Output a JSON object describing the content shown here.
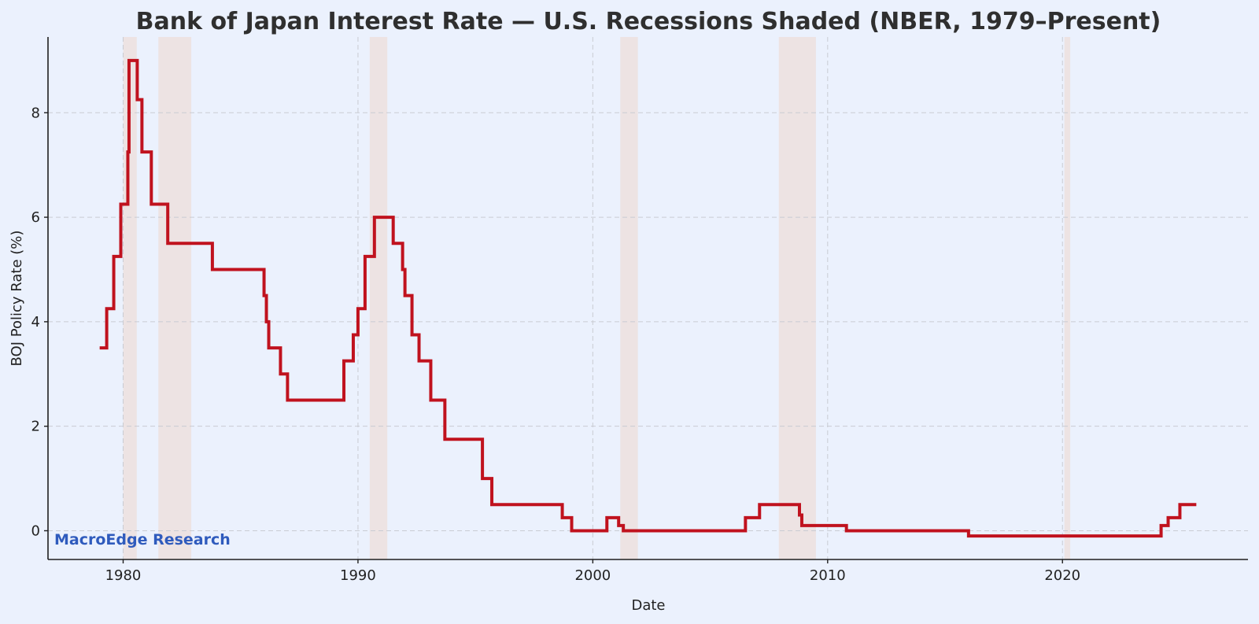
{
  "colors": {
    "background": "#ebf1fd",
    "line": "#c0121e",
    "recession_shade": "#ede3e3",
    "watermark": "#2f5bbd"
  },
  "watermark": "MacroEdge Research",
  "chart_data": {
    "type": "line",
    "title": "Bank of Japan Interest Rate — U.S. Recessions Shaded (NBER, 1979–Present)",
    "xlabel": "Date",
    "ylabel": "BOJ Policy Rate (%)",
    "xlim": [
      1976.8,
      2027.9
    ],
    "ylim": [
      -0.55,
      9.45
    ],
    "x_ticks": [
      1980,
      1990,
      2000,
      2010,
      2020
    ],
    "x_tick_labels": [
      "1980",
      "1990",
      "2000",
      "2010",
      "2020"
    ],
    "y_ticks": [
      0,
      2,
      4,
      6,
      8
    ],
    "y_tick_labels": [
      "0",
      "2",
      "4",
      "6",
      "8"
    ],
    "grid": true,
    "recessions": [
      {
        "start": 1980.0,
        "end": 1980.58
      },
      {
        "start": 1981.5,
        "end": 1982.9
      },
      {
        "start": 1990.5,
        "end": 1991.25
      },
      {
        "start": 2001.17,
        "end": 2001.92
      },
      {
        "start": 2007.92,
        "end": 2009.5
      },
      {
        "start": 2020.08,
        "end": 2020.33
      }
    ],
    "series": [
      {
        "x": [
          1979.0,
          1979.3,
          1979.3,
          1979.6,
          1979.6,
          1979.9,
          1979.9,
          1980.2,
          1980.2,
          1980.25,
          1980.25,
          1980.6,
          1980.6,
          1980.8,
          1980.8,
          1981.2,
          1981.2,
          1981.9,
          1981.9,
          1983.8,
          1983.8,
          1986.0,
          1986.0,
          1986.1,
          1986.1,
          1986.2,
          1986.2,
          1986.7,
          1986.7,
          1987.0,
          1987.0,
          1989.4,
          1989.4,
          1989.8,
          1989.8,
          1990.0,
          1990.0,
          1990.3,
          1990.3,
          1990.7,
          1990.7,
          1991.5,
          1991.5,
          1991.9,
          1991.9,
          1992.0,
          1992.0,
          1992.3,
          1992.3,
          1992.6,
          1992.6,
          1993.1,
          1993.1,
          1993.7,
          1993.7,
          1995.3,
          1995.3,
          1995.7,
          1995.7,
          1998.7,
          1998.7,
          1999.1,
          1999.1,
          2000.6,
          2000.6,
          2001.1,
          2001.1,
          2001.3,
          2001.3,
          2006.5,
          2006.5,
          2007.1,
          2007.1,
          2008.8,
          2008.8,
          2008.9,
          2008.9,
          2010.8,
          2010.8,
          2016.0,
          2016.0,
          2024.2,
          2024.2,
          2024.5,
          2024.5,
          2025.0,
          2025.0,
          2025.7
        ],
        "y": [
          3.5,
          3.5,
          4.25,
          4.25,
          5.25,
          5.25,
          6.25,
          6.25,
          7.25,
          7.25,
          9.0,
          9.0,
          8.25,
          8.25,
          7.25,
          7.25,
          6.25,
          6.25,
          5.5,
          5.5,
          5.0,
          5.0,
          4.5,
          4.5,
          4.0,
          4.0,
          3.5,
          3.5,
          3.0,
          3.0,
          2.5,
          2.5,
          3.25,
          3.25,
          3.75,
          3.75,
          4.25,
          4.25,
          5.25,
          5.25,
          6.0,
          6.0,
          5.5,
          5.5,
          5.0,
          5.0,
          4.5,
          4.5,
          3.75,
          3.75,
          3.25,
          3.25,
          2.5,
          2.5,
          1.75,
          1.75,
          1.0,
          1.0,
          0.5,
          0.5,
          0.25,
          0.25,
          0.0,
          0.0,
          0.25,
          0.25,
          0.1,
          0.1,
          0.0,
          0.0,
          0.25,
          0.25,
          0.5,
          0.5,
          0.3,
          0.3,
          0.1,
          0.1,
          0.0,
          0.0,
          -0.1,
          -0.1,
          0.1,
          0.1,
          0.25,
          0.25,
          0.5,
          0.5
        ]
      }
    ]
  }
}
